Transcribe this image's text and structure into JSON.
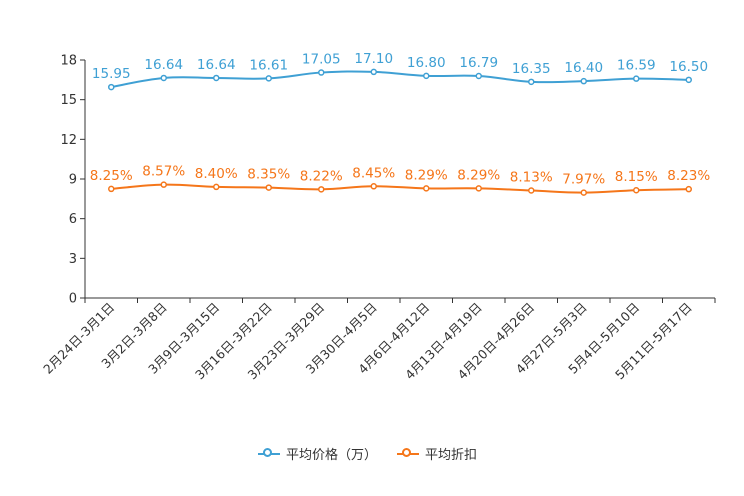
{
  "chart_data": {
    "type": "line",
    "categories": [
      "2月24日-3月1日",
      "3月2日-3月8日",
      "3月9日-3月15日",
      "3月16日-3月22日",
      "3月23日-3月29日",
      "3月30日-4月5日",
      "4月6日-4月12日",
      "4月13日-4月19日",
      "4月20日-4月26日",
      "4月27日-5月3日",
      "5月4日-5月10日",
      "5月11日-5月17日"
    ],
    "series": [
      {
        "name": "平均价格（万）",
        "color": "#3fa0d4",
        "values": [
          15.95,
          16.64,
          16.64,
          16.61,
          17.05,
          17.1,
          16.8,
          16.79,
          16.35,
          16.4,
          16.59,
          16.5
        ],
        "labels": [
          "15.95",
          "16.64",
          "16.64",
          "16.61",
          "17.05",
          "17.10",
          "16.80",
          "16.79",
          "16.35",
          "16.40",
          "16.59",
          "16.50"
        ]
      },
      {
        "name": "平均折扣",
        "color": "#f5761a",
        "values": [
          8.25,
          8.57,
          8.4,
          8.35,
          8.22,
          8.45,
          8.29,
          8.29,
          8.13,
          7.97,
          8.15,
          8.23
        ],
        "labels": [
          "8.25%",
          "8.57%",
          "8.40%",
          "8.35%",
          "8.22%",
          "8.45%",
          "8.29%",
          "8.29%",
          "8.13%",
          "7.97%",
          "8.15%",
          "8.23%"
        ]
      }
    ],
    "yticks": [
      "0",
      "3",
      "6",
      "9",
      "12",
      "15",
      "18"
    ],
    "ylim": [
      0,
      18
    ],
    "title": "",
    "xlabel": "",
    "ylabel": "",
    "legend_position": "bottom-center"
  }
}
